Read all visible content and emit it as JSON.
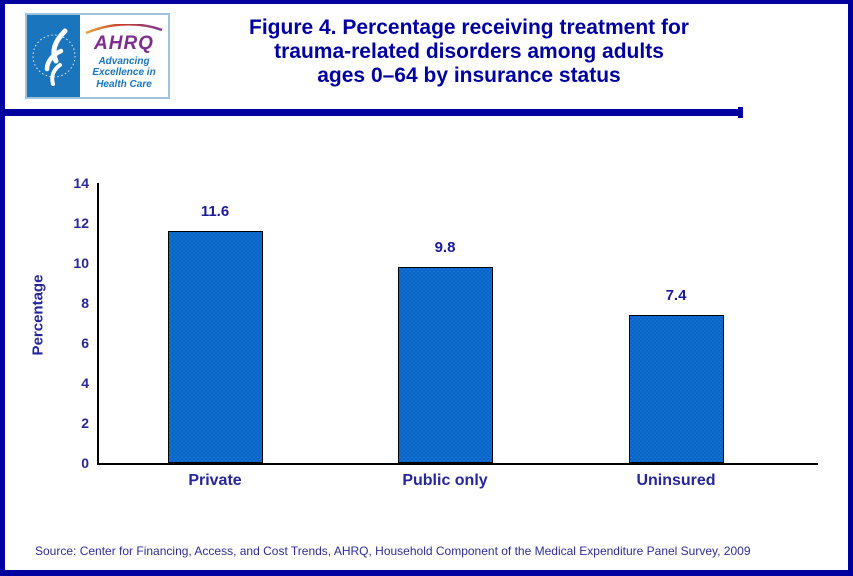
{
  "header": {
    "logo": {
      "hhs_seal": "Department of Health and Human Services seal",
      "ahrq_acronym": "AHRQ",
      "tagline": "Advancing\nExcellence in\nHealth Care"
    },
    "title_lines": [
      "Figure 4. Percentage receiving treatment for",
      "trauma-related disorders among adults",
      "ages 0–64 by insurance status"
    ]
  },
  "chart_data": {
    "type": "bar",
    "title": "Figure 4. Percentage receiving treatment for trauma-related disorders among adults ages 0–64 by insurance status",
    "categories": [
      "Private",
      "Public only",
      "Uninsured"
    ],
    "values": [
      11.6,
      9.8,
      7.4
    ],
    "value_labels": [
      "11.6",
      "9.8",
      "7.4"
    ],
    "xlabel": "",
    "ylabel": "Percentage",
    "ylim": [
      0,
      14
    ],
    "yticks": [
      0,
      2,
      4,
      6,
      8,
      10,
      12,
      14
    ],
    "grid": false,
    "legend": false,
    "bar_color": "#0F6ECF",
    "bar_border_color": "#000000",
    "label_color": "#26269A"
  },
  "footer": {
    "source": "Source: Center for Financing, Access, and Cost Trends, AHRQ, Household Component  of the Medical Expenditure Panel Survey,  2009"
  },
  "colors": {
    "frame_navy": "#0000A0",
    "title_navy": "#0000A0",
    "hhs_blue": "#1B75BC",
    "ahrq_purple": "#7D2E8D",
    "logo_border_blue": "#9EC4DC"
  }
}
